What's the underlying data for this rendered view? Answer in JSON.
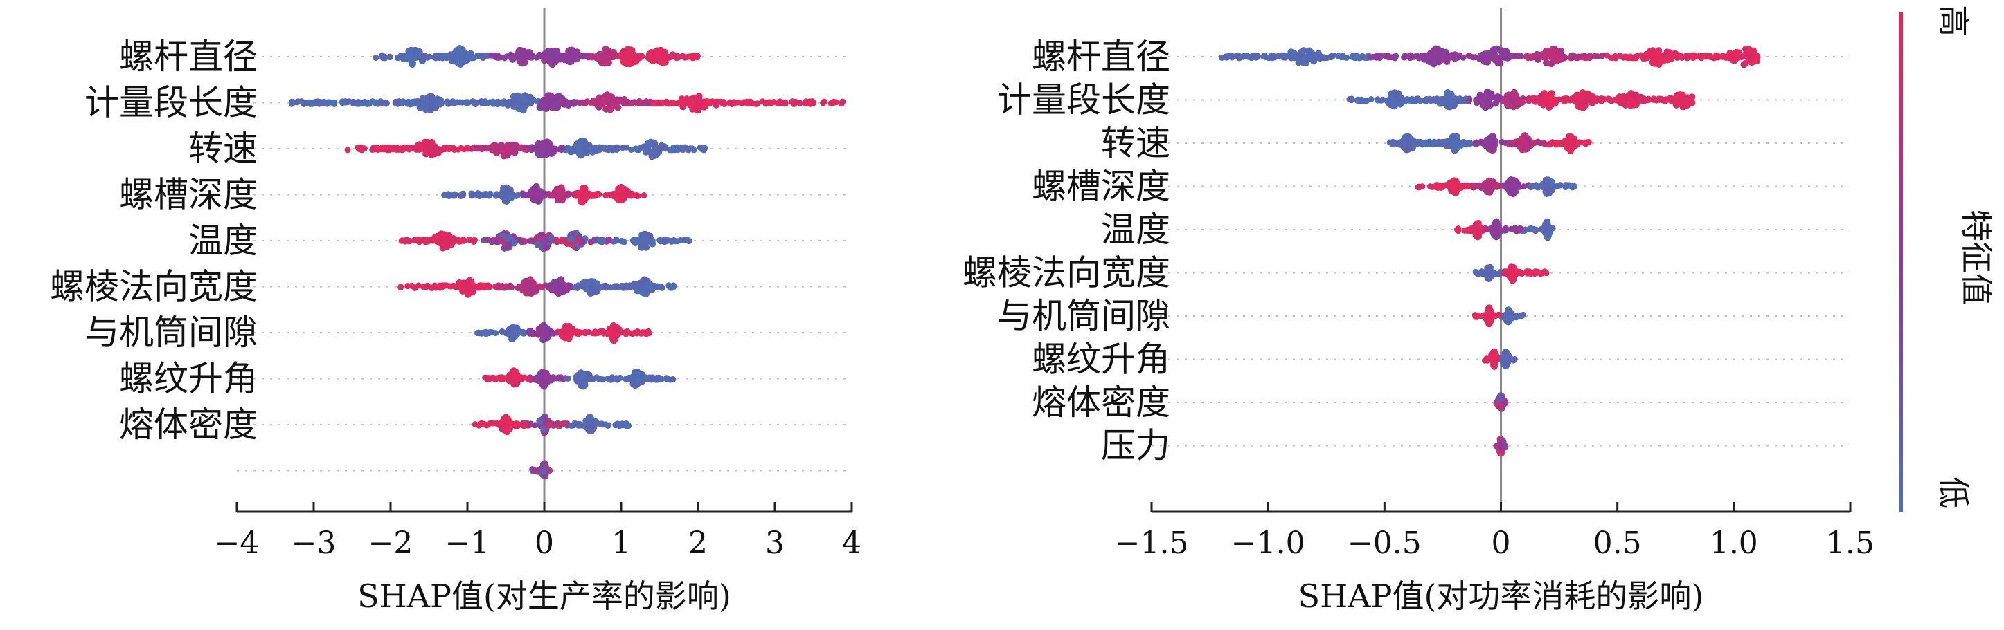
{
  "chart_data": [
    {
      "type": "scatter",
      "subtype": "shap-beeswarm",
      "xlabel": "SHAP值(对生产率的影响)",
      "xlim": [
        -4,
        4
      ],
      "xticks": [
        -4,
        -3,
        -2,
        -1,
        0,
        1,
        2,
        3,
        4
      ],
      "xtick_labels": [
        "−4",
        "−3",
        "−2",
        "−1",
        "0",
        "1",
        "2",
        "3",
        "4"
      ],
      "grid": "dotted horizontal row lines",
      "features": [
        {
          "name": "螺杆直径",
          "min": -2.2,
          "max": 2.0,
          "clusters": [
            {
              "x": -1.7,
              "color": "low"
            },
            {
              "x": -1.1,
              "color": "low"
            },
            {
              "x": -0.3,
              "color": "mid"
            },
            {
              "x": 0.1,
              "color": "mid"
            },
            {
              "x": 0.35,
              "color": "mid"
            },
            {
              "x": 0.8,
              "color": "midhigh"
            },
            {
              "x": 1.1,
              "color": "high"
            },
            {
              "x": 1.5,
              "color": "high"
            }
          ]
        },
        {
          "name": "计量段长度",
          "min": -3.3,
          "max": 3.9,
          "clusters": [
            {
              "x": -1.5,
              "color": "low"
            },
            {
              "x": -0.3,
              "color": "low"
            },
            {
              "x": 0.1,
              "color": "mid"
            },
            {
              "x": 0.8,
              "color": "midhigh"
            },
            {
              "x": 2.0,
              "color": "high"
            }
          ]
        },
        {
          "name": "转速",
          "min": -2.6,
          "max": 2.1,
          "clusters": [
            {
              "x": -1.5,
              "color": "high"
            },
            {
              "x": -0.5,
              "color": "midhigh"
            },
            {
              "x": 0.0,
              "color": "mid"
            },
            {
              "x": 0.5,
              "color": "low"
            },
            {
              "x": 1.4,
              "color": "low"
            }
          ]
        },
        {
          "name": "螺槽深度",
          "min": -1.3,
          "max": 1.3,
          "clusters": [
            {
              "x": -0.5,
              "color": "low"
            },
            {
              "x": -0.1,
              "color": "mid"
            },
            {
              "x": 0.2,
              "color": "midhigh"
            },
            {
              "x": 0.5,
              "color": "high"
            },
            {
              "x": 1.0,
              "color": "high"
            }
          ]
        },
        {
          "name": "温度",
          "min": -1.9,
          "max": 1.9,
          "clusters": [
            {
              "x": -1.3,
              "color": "high"
            },
            {
              "x": -0.5,
              "color": "mix"
            },
            {
              "x": 0.0,
              "color": "mix"
            },
            {
              "x": 0.4,
              "color": "mix"
            },
            {
              "x": 1.3,
              "color": "low"
            }
          ]
        },
        {
          "name": "螺棱法向宽度",
          "min": -1.9,
          "max": 1.7,
          "clusters": [
            {
              "x": -1.0,
              "color": "high"
            },
            {
              "x": -0.2,
              "color": "midhigh"
            },
            {
              "x": 0.2,
              "color": "mid"
            },
            {
              "x": 0.6,
              "color": "low"
            },
            {
              "x": 1.3,
              "color": "low"
            }
          ]
        },
        {
          "name": "与机筒间隙",
          "min": -0.9,
          "max": 1.4,
          "clusters": [
            {
              "x": -0.4,
              "color": "low"
            },
            {
              "x": 0.0,
              "color": "mid"
            },
            {
              "x": 0.3,
              "color": "high"
            },
            {
              "x": 0.9,
              "color": "high"
            }
          ]
        },
        {
          "name": "螺纹升角",
          "min": -0.8,
          "max": 1.7,
          "clusters": [
            {
              "x": -0.4,
              "color": "high"
            },
            {
              "x": 0.0,
              "color": "mid"
            },
            {
              "x": 0.5,
              "color": "low"
            },
            {
              "x": 1.2,
              "color": "low"
            }
          ]
        },
        {
          "name": "熔体密度",
          "min": -0.9,
          "max": 1.1,
          "clusters": [
            {
              "x": -0.5,
              "color": "high"
            },
            {
              "x": 0.0,
              "color": "mix"
            },
            {
              "x": 0.6,
              "color": "low"
            }
          ]
        },
        {
          "name": "",
          "min": -0.2,
          "max": 0.1,
          "clusters": [
            {
              "x": 0.0,
              "color": "mix"
            }
          ]
        }
      ]
    },
    {
      "type": "scatter",
      "subtype": "shap-beeswarm",
      "xlabel": "SHAP值(对功率消耗的影响)",
      "xlim": [
        -1.5,
        1.5
      ],
      "xticks": [
        -1.5,
        -1.0,
        -0.5,
        0,
        0.5,
        1.0,
        1.5
      ],
      "xtick_labels": [
        "−1.5",
        "−1.0",
        "−0.5",
        "0",
        "0.5",
        "1.0",
        "1.5"
      ],
      "grid": "dotted horizontal row lines",
      "features": [
        {
          "name": "螺杆直径",
          "min": -1.2,
          "max": 1.1,
          "clusters": [
            {
              "x": -0.85,
              "color": "low"
            },
            {
              "x": -0.28,
              "color": "mid"
            },
            {
              "x": -0.02,
              "color": "mid"
            },
            {
              "x": 0.22,
              "color": "midhigh"
            },
            {
              "x": 0.68,
              "color": "high"
            },
            {
              "x": 1.05,
              "color": "high"
            }
          ]
        },
        {
          "name": "计量段长度",
          "min": -0.65,
          "max": 0.82,
          "clusters": [
            {
              "x": -0.45,
              "color": "low"
            },
            {
              "x": -0.22,
              "color": "low"
            },
            {
              "x": -0.06,
              "color": "mid"
            },
            {
              "x": 0.05,
              "color": "midhigh"
            },
            {
              "x": 0.2,
              "color": "high"
            },
            {
              "x": 0.35,
              "color": "high"
            },
            {
              "x": 0.55,
              "color": "high"
            },
            {
              "x": 0.78,
              "color": "high"
            }
          ]
        },
        {
          "name": "转速",
          "min": -0.48,
          "max": 0.38,
          "clusters": [
            {
              "x": -0.4,
              "color": "low"
            },
            {
              "x": -0.2,
              "color": "low"
            },
            {
              "x": -0.04,
              "color": "mid"
            },
            {
              "x": 0.1,
              "color": "midhigh"
            },
            {
              "x": 0.3,
              "color": "high"
            }
          ]
        },
        {
          "name": "螺槽深度",
          "min": -0.37,
          "max": 0.33,
          "clusters": [
            {
              "x": -0.2,
              "color": "high"
            },
            {
              "x": -0.05,
              "color": "midhigh"
            },
            {
              "x": 0.05,
              "color": "mid"
            },
            {
              "x": 0.2,
              "color": "low"
            }
          ]
        },
        {
          "name": "温度",
          "min": -0.2,
          "max": 0.24,
          "clusters": [
            {
              "x": -0.1,
              "color": "high"
            },
            {
              "x": -0.02,
              "color": "mid"
            },
            {
              "x": 0.2,
              "color": "low"
            }
          ]
        },
        {
          "name": "螺棱法向宽度",
          "min": -0.13,
          "max": 0.2,
          "clusters": [
            {
              "x": -0.05,
              "color": "low"
            },
            {
              "x": 0.05,
              "color": "high"
            }
          ]
        },
        {
          "name": "与机筒间隙",
          "min": -0.12,
          "max": 0.1,
          "clusters": [
            {
              "x": -0.05,
              "color": "high"
            },
            {
              "x": 0.03,
              "color": "low"
            }
          ]
        },
        {
          "name": "螺纹升角",
          "min": -0.08,
          "max": 0.06,
          "clusters": [
            {
              "x": -0.03,
              "color": "high"
            },
            {
              "x": 0.02,
              "color": "low"
            }
          ]
        },
        {
          "name": "熔体密度",
          "min": -0.02,
          "max": 0.02,
          "clusters": [
            {
              "x": 0.0,
              "color": "mix"
            }
          ]
        },
        {
          "name": "压力",
          "min": -0.02,
          "max": 0.02,
          "clusters": [
            {
              "x": 0.0,
              "color": "mix"
            }
          ]
        }
      ]
    }
  ],
  "colorbar": {
    "label": "特征值",
    "high_label": "高",
    "low_label": "低",
    "low_color": "#4f6fb5",
    "mid_color": "#8a3a9a",
    "high_color": "#e8285a"
  },
  "colors": {
    "axis": "#222222",
    "zero_line": "#8a8a8a",
    "grid": "#c0c0c0"
  }
}
